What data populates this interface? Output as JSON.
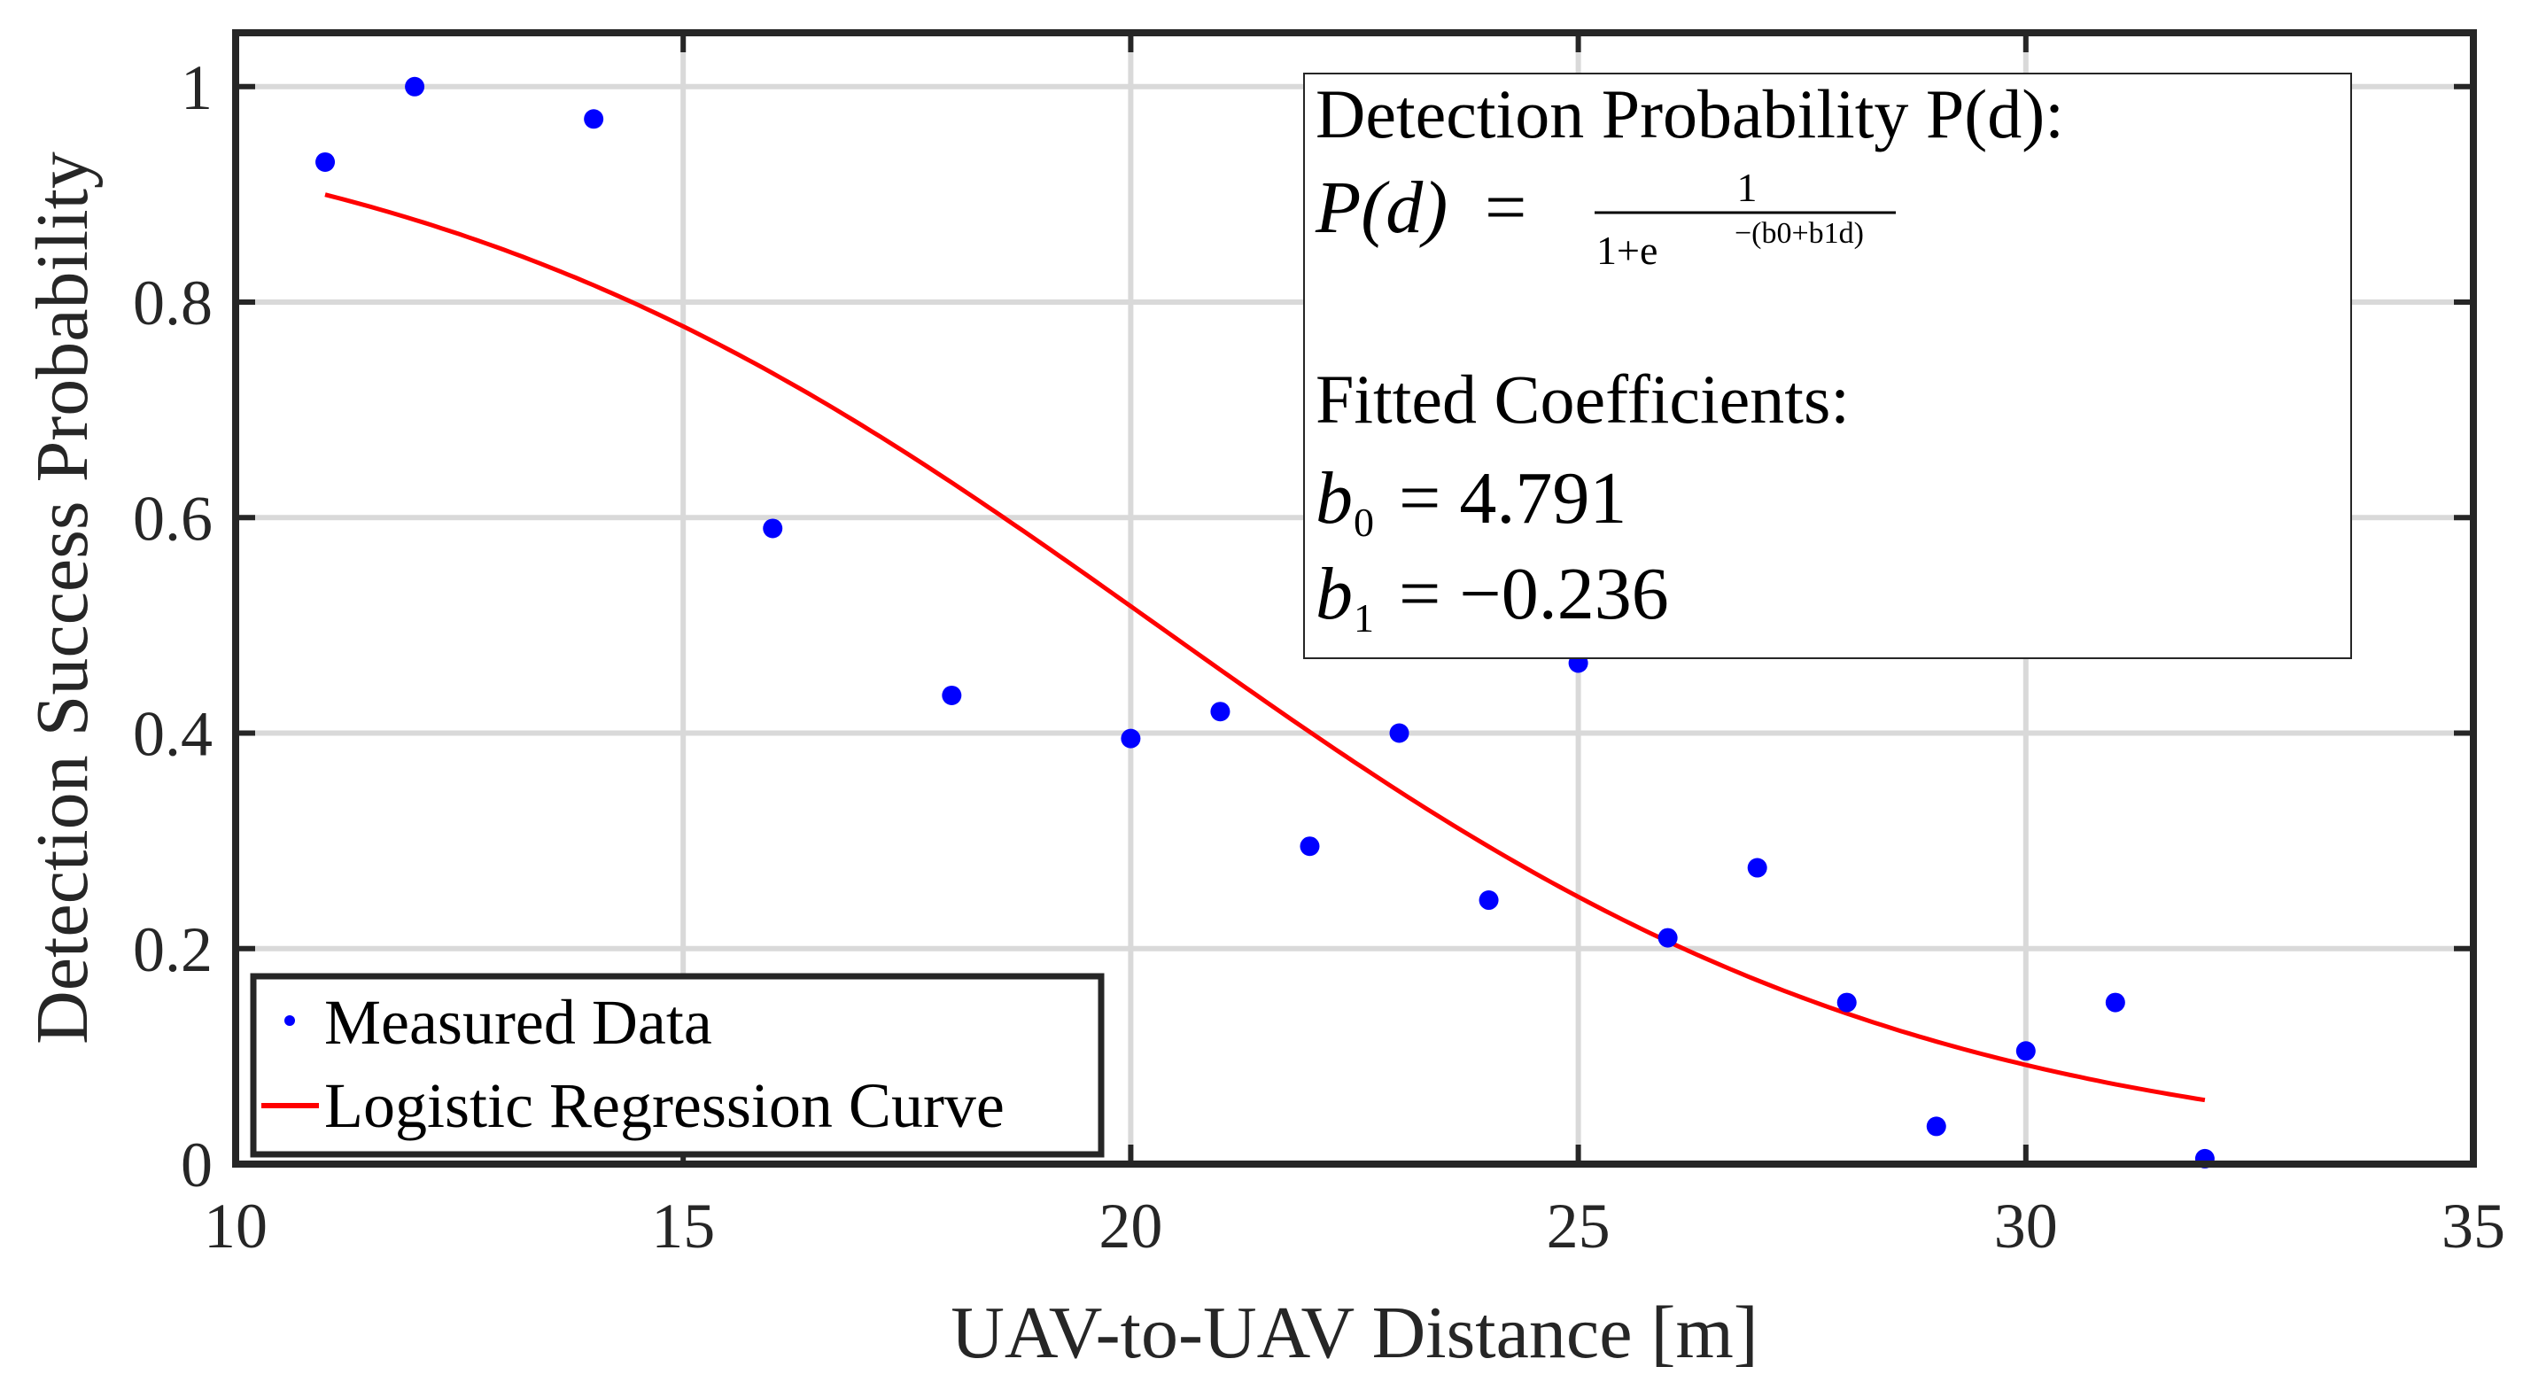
{
  "chart_data": {
    "type": "scatter",
    "xlabel": "UAV-to-UAV Distance [m]",
    "ylabel": "Detection Success Probability",
    "xlim": [
      10,
      35
    ],
    "ylim": [
      0,
      1.05
    ],
    "xticks": [
      10,
      15,
      20,
      25,
      30,
      35
    ],
    "xtick_labels": [
      "10",
      "15",
      "20",
      "25",
      "30",
      "35"
    ],
    "yticks": [
      0,
      0.2,
      0.4,
      0.6,
      0.8,
      1
    ],
    "ytick_labels": [
      "0",
      "0.2",
      "0.4",
      "0.6",
      "0.8",
      "1"
    ],
    "grid": true,
    "series": [
      {
        "name": "Measured Data",
        "kind": "points",
        "color": "#0000ff",
        "x": [
          11,
          12,
          14,
          16,
          18,
          20,
          21,
          22,
          23,
          24,
          25,
          26,
          27,
          28,
          29,
          30,
          31,
          32
        ],
        "y": [
          0.93,
          1.0,
          0.97,
          0.59,
          0.435,
          0.395,
          0.42,
          0.295,
          0.4,
          0.245,
          0.465,
          0.21,
          0.275,
          0.15,
          0.035,
          0.105,
          0.15,
          0.005
        ]
      },
      {
        "name": "Logistic Regression Curve",
        "kind": "line",
        "color": "#ff0000",
        "b0": 4.791,
        "b1": -0.236,
        "x_range": [
          11,
          32
        ]
      }
    ],
    "legend": {
      "position": "bottom-left",
      "entries": [
        "Measured Data",
        "Logistic Regression Curve"
      ]
    },
    "annotation": {
      "title": "Detection Probability P(d):",
      "formula_lhs": "P(d)",
      "formula_eq": " = ",
      "formula_num": "1",
      "formula_den_main": "1+e",
      "formula_den_exp": "−(b0+b1d)",
      "coef_title": "Fitted Coefficients:",
      "b0_label": "b",
      "b0_sub": "0",
      "b0_value": " = 4.791",
      "b1_label": "b",
      "b1_sub": "1",
      "b1_value": " = −0.236"
    }
  }
}
